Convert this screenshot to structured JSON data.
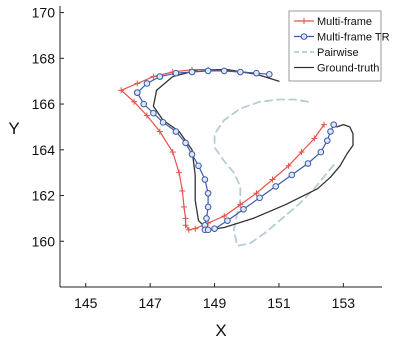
{
  "chart_data": {
    "type": "line",
    "xlabel": "X",
    "ylabel": "Y",
    "xlim": [
      144.2,
      154.2
    ],
    "ylim": [
      158.0,
      170.2
    ],
    "xticks": [
      145,
      147,
      149,
      151,
      153
    ],
    "yticks": [
      160,
      162,
      164,
      166,
      168,
      170
    ],
    "grid": false,
    "legend_position": "top-right",
    "series": [
      {
        "name": "Multi-frame",
        "color": "#e8504a",
        "marker": "plus",
        "x": [
          148.3,
          147.7,
          147.1,
          146.6,
          146.1,
          146.5,
          146.9,
          147.3,
          147.7,
          147.9,
          148.0,
          148.05,
          148.1,
          148.1,
          148.2,
          148.4,
          148.8,
          149.3,
          149.8,
          150.3,
          150.8,
          151.3,
          151.7,
          152.1,
          152.4
        ],
        "y": [
          167.5,
          167.4,
          167.2,
          166.9,
          166.6,
          166.1,
          165.5,
          164.8,
          163.9,
          163.0,
          162.2,
          161.5,
          161.0,
          160.7,
          160.5,
          160.55,
          160.8,
          161.1,
          161.6,
          162.1,
          162.7,
          163.3,
          163.9,
          164.5,
          165.1
        ]
      },
      {
        "name": "Multi-frame",
        "color": "#e8504a",
        "marker": "plus",
        "x": [
          148.3,
          148.8,
          149.3,
          149.8,
          150.3
        ],
        "y": [
          167.5,
          167.5,
          167.45,
          167.4,
          167.35
        ]
      },
      {
        "name": "Multi-frame TR",
        "color": "#3a5ba8",
        "marker": "circle",
        "x": [
          146.6,
          146.8,
          147.1,
          147.4,
          147.8,
          148.1,
          148.3,
          148.5,
          148.7,
          148.8,
          148.8,
          148.75,
          148.7,
          148.7,
          148.8,
          149.0,
          149.4,
          149.9,
          150.4,
          150.9,
          151.4,
          151.9,
          152.3,
          152.5,
          152.6,
          152.7
        ],
        "y": [
          166.5,
          166.0,
          165.6,
          165.2,
          164.8,
          164.3,
          163.8,
          163.3,
          162.7,
          162.1,
          161.5,
          161.0,
          160.7,
          160.5,
          160.5,
          160.55,
          160.9,
          161.4,
          161.9,
          162.4,
          162.9,
          163.4,
          163.9,
          164.4,
          164.8,
          165.1
        ]
      },
      {
        "name": "Multi-frame TR",
        "color": "#3a5ba8",
        "marker": "circle",
        "x": [
          146.6,
          146.9,
          147.3,
          147.8,
          148.3,
          148.8,
          149.3,
          149.8,
          150.3,
          150.7
        ],
        "y": [
          166.5,
          166.9,
          167.2,
          167.35,
          167.4,
          167.45,
          167.45,
          167.4,
          167.35,
          167.3
        ]
      },
      {
        "name": "Pairwise",
        "color": "#b5ccd6",
        "marker": "none",
        "dashed": true,
        "x": [
          151.9,
          151.5,
          151.0,
          150.4,
          149.8,
          149.3,
          149.0,
          149.0,
          149.3,
          149.6,
          149.8,
          149.8,
          149.7,
          149.6,
          149.7,
          150.1,
          150.6,
          151.1,
          151.6,
          152.1,
          152.5,
          152.8
        ],
        "y": [
          166.1,
          166.2,
          166.2,
          166.1,
          165.8,
          165.3,
          164.7,
          164.1,
          163.5,
          163.0,
          162.4,
          161.8,
          161.2,
          160.5,
          159.8,
          159.9,
          160.4,
          161.0,
          161.6,
          162.3,
          163.0,
          163.5
        ]
      },
      {
        "name": "Ground-truth",
        "color": "#333333",
        "marker": "none",
        "x": [
          151.0,
          150.3,
          149.4,
          148.5,
          147.7,
          147.2,
          147.1,
          147.4,
          147.9,
          148.3,
          148.4,
          148.4,
          148.5,
          148.8,
          149.3,
          150.2,
          151.2,
          152.2,
          152.6,
          152.9,
          153.1,
          153.3,
          153.3,
          153.2,
          153.0,
          152.8
        ],
        "y": [
          167.0,
          167.3,
          167.5,
          167.5,
          167.2,
          166.6,
          165.9,
          165.3,
          164.8,
          164.0,
          162.9,
          161.8,
          160.9,
          160.5,
          160.6,
          161.0,
          161.6,
          162.3,
          162.8,
          163.3,
          163.8,
          164.2,
          164.7,
          165.0,
          165.1,
          165.0
        ]
      }
    ],
    "legend": [
      {
        "name": "Multi-frame",
        "color": "#e8504a",
        "marker": "plus",
        "dashed": false
      },
      {
        "name": "Multi-frame TR",
        "color": "#3a5ba8",
        "marker": "circle",
        "dashed": false
      },
      {
        "name": "Pairwise",
        "color": "#b5ccd6",
        "marker": "none",
        "dashed": true
      },
      {
        "name": "Ground-truth",
        "color": "#333333",
        "marker": "none",
        "dashed": false
      }
    ]
  }
}
